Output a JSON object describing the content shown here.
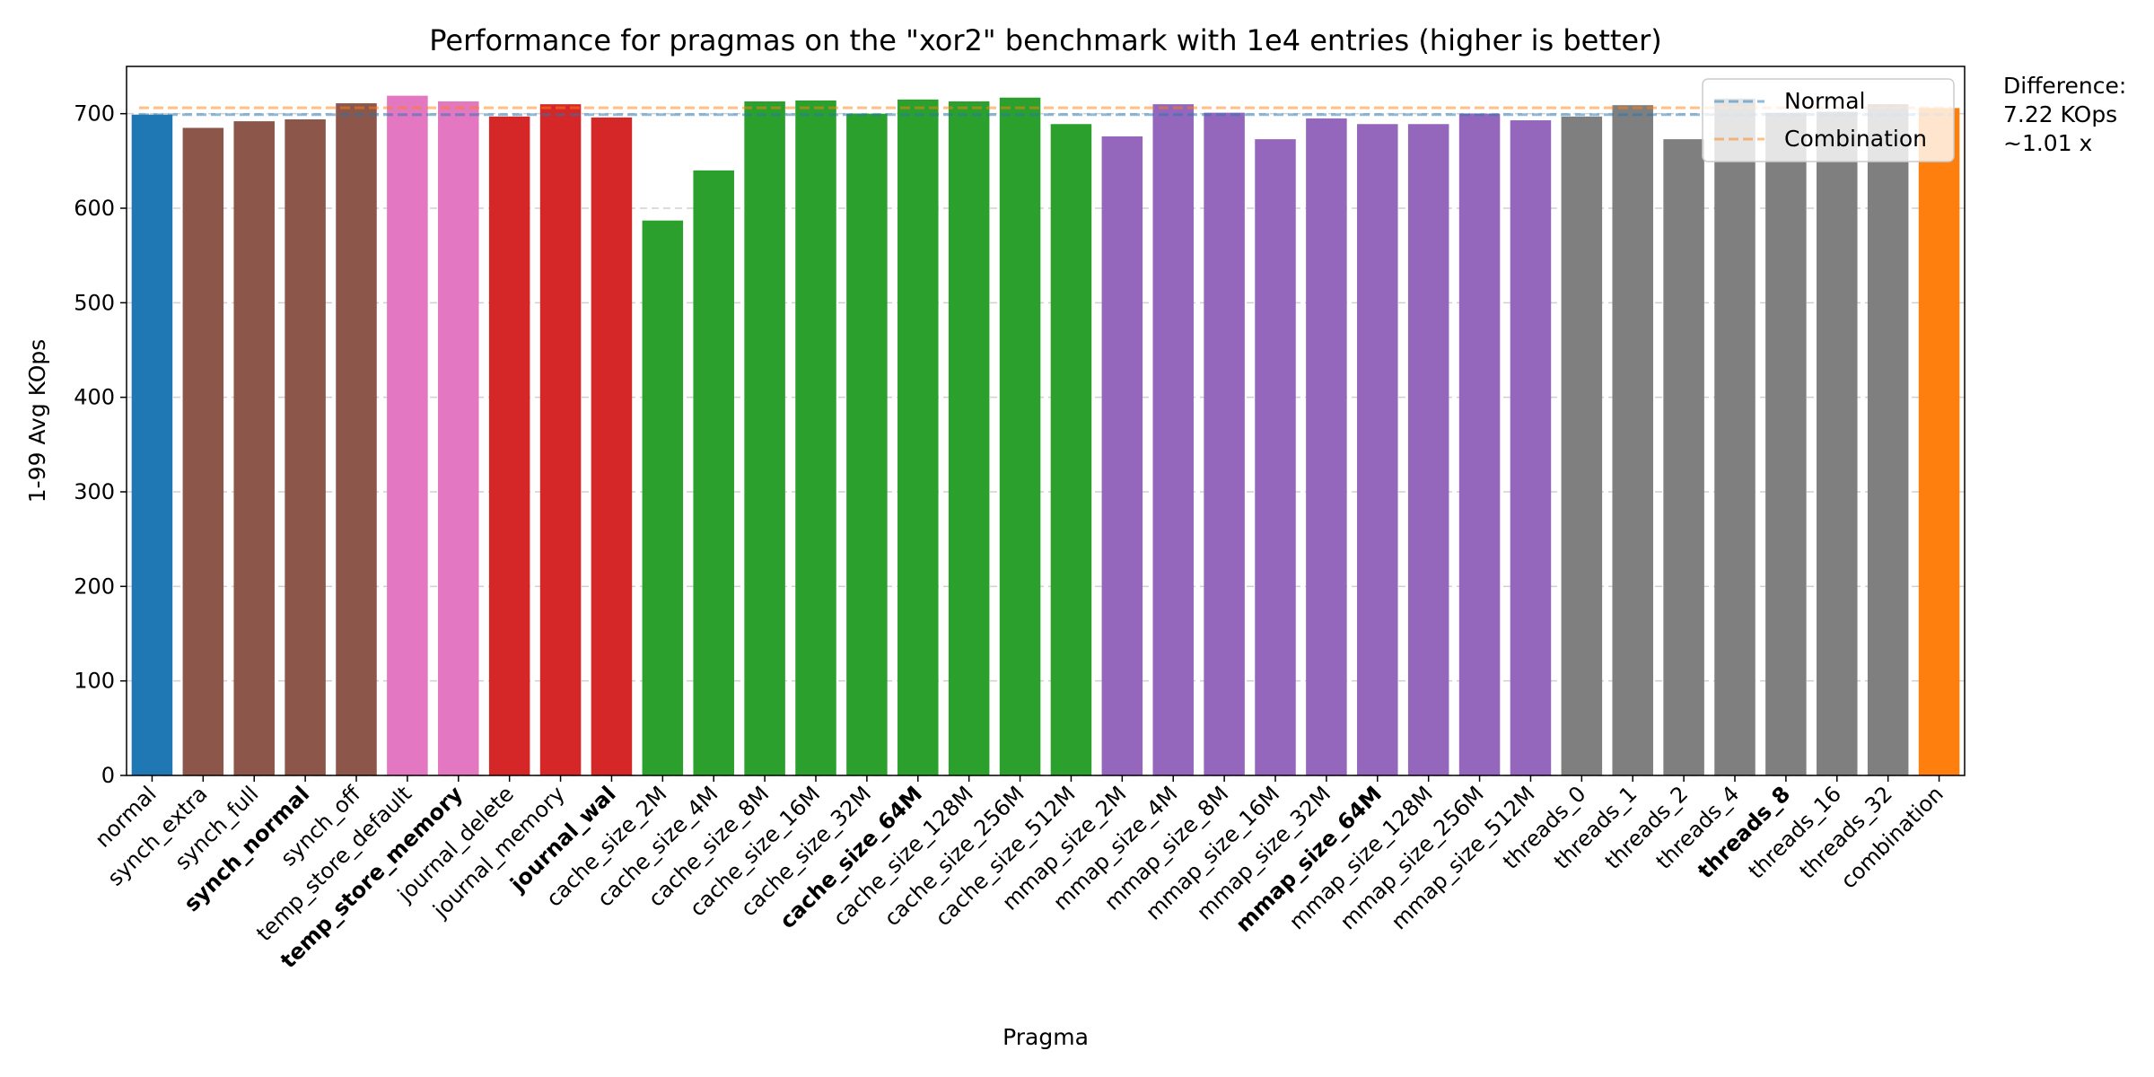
{
  "chart_data": {
    "type": "bar",
    "title": "Performance for pragmas on the \"xor2\" benchmark with 1e4 entries (higher is better)",
    "xlabel": "Pragma",
    "ylabel": "1-99 Avg KOps",
    "ylim": [
      0,
      750
    ],
    "yticks": [
      0,
      100,
      200,
      300,
      400,
      500,
      600,
      700
    ],
    "grid": "horizontal dashed",
    "categories": [
      "normal",
      "synch_extra",
      "synch_full",
      "synch_normal",
      "synch_off",
      "temp_store_default",
      "temp_store_memory",
      "journal_delete",
      "journal_memory",
      "journal_wal",
      "cache_size_2M",
      "cache_size_4M",
      "cache_size_8M",
      "cache_size_16M",
      "cache_size_32M",
      "cache_size_64M",
      "cache_size_128M",
      "cache_size_256M",
      "cache_size_512M",
      "mmap_size_2M",
      "mmap_size_4M",
      "mmap_size_8M",
      "mmap_size_16M",
      "mmap_size_32M",
      "mmap_size_64M",
      "mmap_size_128M",
      "mmap_size_256M",
      "mmap_size_512M",
      "threads_0",
      "threads_1",
      "threads_2",
      "threads_4",
      "threads_8",
      "threads_16",
      "threads_32",
      "combination"
    ],
    "values": [
      699,
      685,
      692,
      694,
      711,
      719,
      713,
      697,
      710,
      696,
      587,
      640,
      713,
      714,
      700,
      715,
      713,
      717,
      689,
      676,
      710,
      701,
      673,
      695,
      689,
      689,
      700,
      693,
      697,
      709,
      673,
      716,
      701,
      702,
      710,
      706
    ],
    "colors": [
      "#1f77b4",
      "#8c564b",
      "#8c564b",
      "#8c564b",
      "#8c564b",
      "#e377c2",
      "#e377c2",
      "#d62728",
      "#d62728",
      "#d62728",
      "#2ca02c",
      "#2ca02c",
      "#2ca02c",
      "#2ca02c",
      "#2ca02c",
      "#2ca02c",
      "#2ca02c",
      "#2ca02c",
      "#2ca02c",
      "#9467bd",
      "#9467bd",
      "#9467bd",
      "#9467bd",
      "#9467bd",
      "#9467bd",
      "#9467bd",
      "#9467bd",
      "#9467bd",
      "#7f7f7f",
      "#7f7f7f",
      "#7f7f7f",
      "#7f7f7f",
      "#7f7f7f",
      "#7f7f7f",
      "#7f7f7f",
      "#ff7f0e"
    ],
    "bold_labels": [
      "synch_normal",
      "temp_store_memory",
      "journal_wal",
      "cache_size_64M",
      "mmap_size_64M",
      "threads_8"
    ],
    "reference_lines": [
      {
        "name": "Normal",
        "value": 699,
        "color": "#1f77b4",
        "style": "dashed"
      },
      {
        "name": "Combination",
        "value": 706.2,
        "color": "#ff7f0e",
        "style": "dashed"
      }
    ],
    "legend": {
      "position": "top-right",
      "entries": [
        "Normal",
        "Combination"
      ]
    },
    "annotation": [
      "Difference:",
      "7.22 KOps",
      "~1.01 x"
    ]
  }
}
